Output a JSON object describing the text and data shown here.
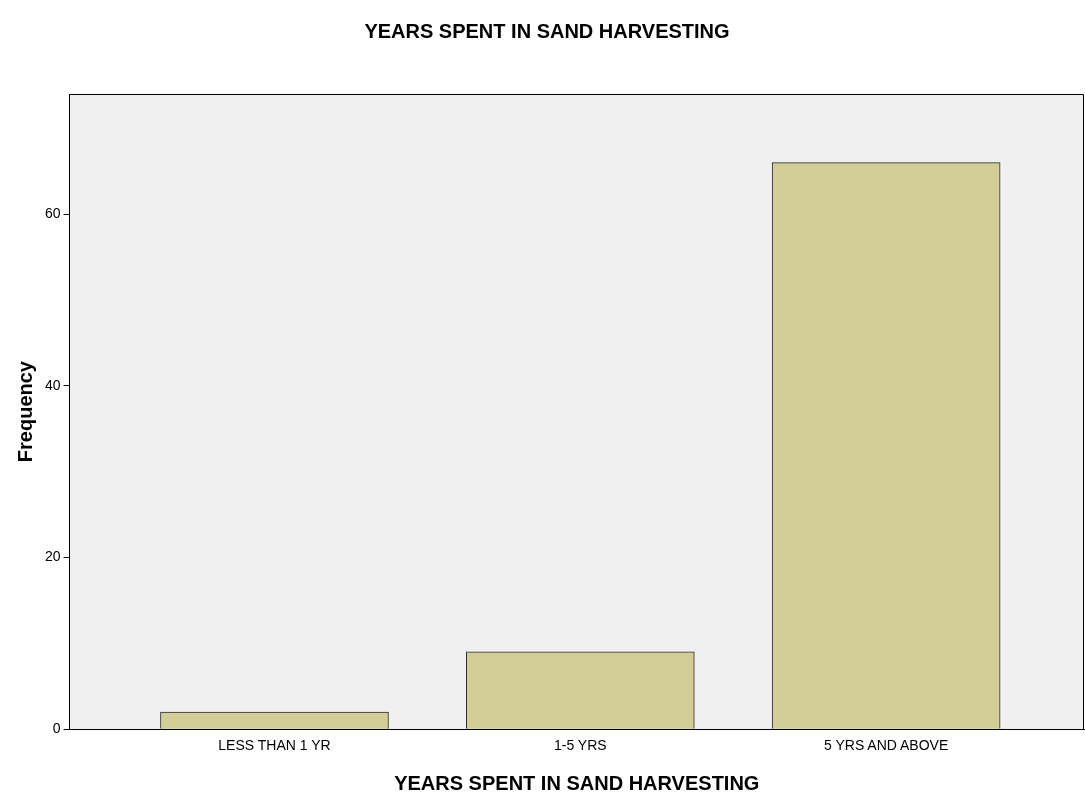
{
  "chart_data": {
    "type": "bar",
    "title": "YEARS SPENT IN SAND HARVESTING",
    "xlabel": "YEARS SPENT IN SAND HARVESTING",
    "ylabel": "Frequency",
    "categories": [
      "LESS THAN 1 YR",
      "1-5 YRS",
      "5 YRS AND ABOVE"
    ],
    "values": [
      2,
      9,
      66
    ],
    "color": "#d3ce98",
    "ylim": [
      0,
      74
    ],
    "yticks": [
      0,
      20,
      40,
      60
    ],
    "grid": false,
    "legend": false
  }
}
